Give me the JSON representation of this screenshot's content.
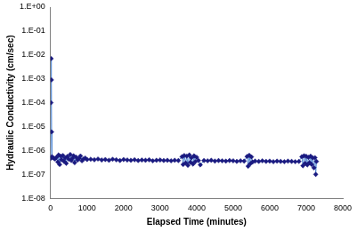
{
  "chart_data": {
    "type": "scatter",
    "x_label": "Elapsed Time (minutes)",
    "y_label": "Hydraulic Conductivity (cm/sec)",
    "x": [
      0,
      12,
      18,
      24,
      30,
      40,
      80,
      120,
      160,
      200,
      220,
      250,
      280,
      300,
      340,
      370,
      400,
      430,
      460,
      500,
      540,
      570,
      600,
      630,
      660,
      700,
      740,
      780,
      820,
      860,
      900,
      950,
      1000,
      1100,
      1200,
      1300,
      1400,
      1500,
      1600,
      1700,
      1800,
      1900,
      2000,
      2100,
      2200,
      2300,
      2400,
      2500,
      2600,
      2700,
      2800,
      2900,
      3000,
      3100,
      3200,
      3300,
      3400,
      3500,
      3600,
      3630,
      3660,
      3700,
      3730,
      3760,
      3800,
      3830,
      3860,
      3900,
      3930,
      3960,
      4000,
      4050,
      4100,
      4200,
      4300,
      4400,
      4500,
      4600,
      4700,
      4800,
      4900,
      5000,
      5100,
      5200,
      5300,
      5380,
      5410,
      5440,
      5470,
      5500,
      5530,
      5600,
      5700,
      5800,
      5900,
      6000,
      6100,
      6200,
      6300,
      6400,
      6500,
      6600,
      6700,
      6800,
      6880,
      6910,
      6940,
      6970,
      7000,
      7030,
      7060,
      7090,
      7120,
      7150,
      7180,
      7210,
      7240,
      7260,
      7280
    ],
    "values": [
      4.6e-07,
      0.0001,
      0.007,
      0.0009,
      6e-06,
      5.5e-07,
      4.8e-07,
      4.4e-07,
      5.2e-07,
      3.3e-07,
      6.5e-07,
      2.6e-07,
      5.8e-07,
      4.1e-07,
      6.2e-07,
      3.5e-07,
      4.9e-07,
      2.9e-07,
      5.6e-07,
      4.3e-07,
      6.8e-07,
      3.8e-07,
      4.7e-07,
      6e-07,
      3.1e-07,
      5.3e-07,
      4e-07,
      4.6e-07,
      5.9e-07,
      3.7e-07,
      4.4e-07,
      4.8e-07,
      4.2e-07,
      4.3e-07,
      4.1e-07,
      4.4e-07,
      4e-07,
      4.2e-07,
      3.9e-07,
      4.3e-07,
      4.1e-07,
      3.8e-07,
      4.2e-07,
      4e-07,
      3.9e-07,
      4.1e-07,
      3.8e-07,
      4e-07,
      3.9e-07,
      4.1e-07,
      3.7e-07,
      3.9e-07,
      4e-07,
      3.8e-07,
      3.9e-07,
      3.7e-07,
      3.9e-07,
      3.8e-07,
      5.5e-07,
      2.6e-07,
      6.2e-07,
      3e-07,
      5.8e-07,
      2.4e-07,
      6.5e-07,
      3.2e-07,
      5e-07,
      2.7e-07,
      6e-07,
      3.4e-07,
      5.2e-07,
      3.8e-07,
      2.5e-07,
      3.8e-07,
      3.7e-07,
      3.9e-07,
      3.6e-07,
      3.8e-07,
      3.7e-07,
      3.6e-07,
      3.8e-07,
      3.7e-07,
      3.5e-07,
      3.7e-07,
      3.6e-07,
      5.6e-07,
      2.2e-07,
      6.3e-07,
      2.8e-07,
      5.4e-07,
      3.3e-07,
      3.6e-07,
      3.5e-07,
      3.7e-07,
      3.5e-07,
      3.6e-07,
      3.4e-07,
      3.6e-07,
      3.5e-07,
      3.4e-07,
      3.6e-07,
      3.5e-07,
      3.4e-07,
      3.5e-07,
      5.5e-07,
      2.3e-07,
      6e-07,
      2.9e-07,
      5.7e-07,
      2.5e-07,
      5.2e-07,
      3.1e-07,
      5.8e-07,
      2.6e-07,
      4.9e-07,
      1.9e-07,
      5e-07,
      1e-07,
      3.5e-07
    ],
    "color": "#1a1a80",
    "marker": "diamond",
    "line_style": "solid",
    "log": "y",
    "grid": false,
    "xlim": [
      0,
      8000
    ],
    "xticks": [
      0,
      1000,
      2000,
      3000,
      4000,
      5000,
      6000,
      7000,
      8000
    ],
    "ylim": [
      1e-08,
      1
    ],
    "yticks": [
      {
        "value": 1e-08,
        "label": "1.E-08"
      },
      {
        "value": 1e-07,
        "label": "1.E-07"
      },
      {
        "value": 1e-06,
        "label": "1.E-06"
      },
      {
        "value": 1e-05,
        "label": "1.E-05"
      },
      {
        "value": 0.0001,
        "label": "1.E-04"
      },
      {
        "value": 0.001,
        "label": "1.E-03"
      },
      {
        "value": 0.01,
        "label": "1.E-02"
      },
      {
        "value": 0.1,
        "label": "1.E-01"
      },
      {
        "value": 1,
        "label": "1.E+00"
      }
    ]
  }
}
